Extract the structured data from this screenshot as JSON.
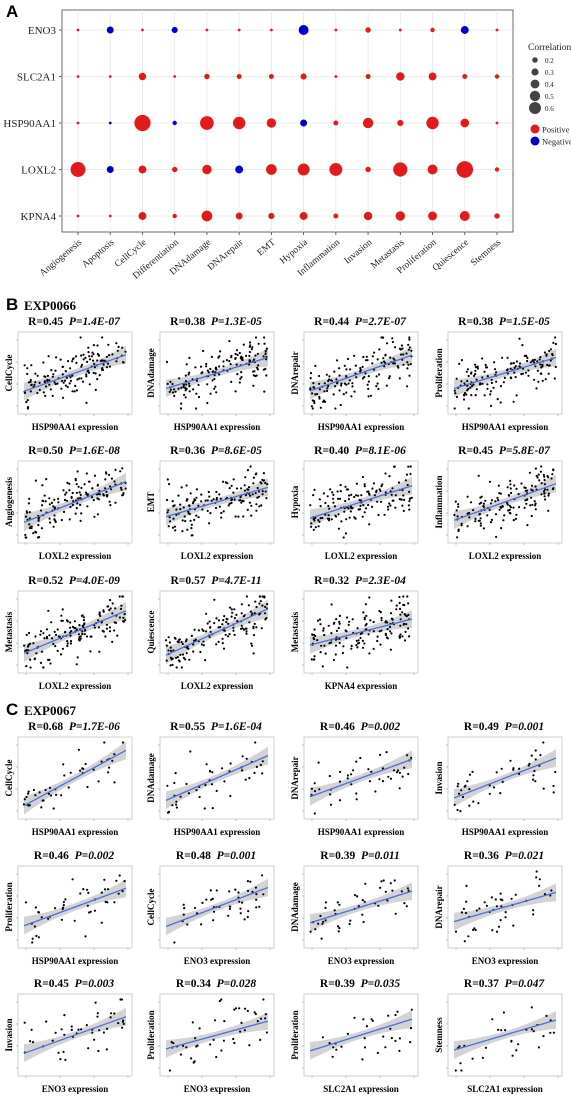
{
  "panels": {
    "a_label": "A",
    "b_label": "B",
    "c_label": "C",
    "b_dataset": "EXP0066",
    "c_dataset": "EXP0067"
  },
  "chart_data": [
    {
      "type": "scatter",
      "subtype": "dot-matrix",
      "panel": "A",
      "genes": [
        "ENO3",
        "SLC2A1",
        "HSP90AA1",
        "LOXL2",
        "KPNA4"
      ],
      "states": [
        "Angiogenesis",
        "Apoptosis",
        "CellCycle",
        "Differentiation",
        "DNAdamage",
        "DNArepair",
        "EMT",
        "Hypoxia",
        "Inflammation",
        "Invasion",
        "Metastasis",
        "Proliferation",
        "Quiescence",
        "Stemness"
      ],
      "cells": [
        {
          "gene": "ENO3",
          "values": [
            0.05,
            -0.18,
            0.06,
            -0.15,
            0.05,
            0.06,
            0.05,
            -0.3,
            0.05,
            0.12,
            0.05,
            0.08,
            -0.22,
            0.05
          ]
        },
        {
          "gene": "SLC2A1",
          "values": [
            0.05,
            0.05,
            0.2,
            0.06,
            0.12,
            0.1,
            0.1,
            0.15,
            0.06,
            0.1,
            0.24,
            0.22,
            0.1,
            0.08
          ]
        },
        {
          "gene": "HSP90AA1",
          "values": [
            0.05,
            -0.05,
            0.55,
            -0.08,
            0.45,
            0.4,
            0.28,
            -0.18,
            0.1,
            0.32,
            0.15,
            0.4,
            0.25,
            0.05
          ]
        },
        {
          "gene": "LOXL2",
          "values": [
            0.5,
            -0.18,
            0.22,
            0.12,
            0.28,
            -0.22,
            0.33,
            0.38,
            0.42,
            0.12,
            0.47,
            0.3,
            0.57,
            0.08
          ]
        },
        {
          "gene": "KPNA4",
          "values": [
            0.05,
            0.06,
            0.22,
            0.08,
            0.33,
            0.18,
            0.15,
            0.22,
            0.1,
            0.24,
            0.28,
            0.26,
            0.3,
            0.12
          ]
        }
      ],
      "size_legend": {
        "title": "Correlation",
        "labels": [
          "0.2",
          "0.3",
          "0.4",
          "0.5",
          "0.6"
        ]
      },
      "color_legend": [
        {
          "label": "Positive",
          "color": "#e31a1c"
        },
        {
          "label": "Negative",
          "color": "#0000cd"
        }
      ]
    },
    {
      "type": "scatter",
      "panel": "B",
      "dataset": "EXP0066",
      "plots": [
        {
          "r": "R=0.45",
          "p": "P=1.4E-07",
          "xlabel": "HSP90AA1 expression",
          "ylabel": "CellCycle",
          "n": 150,
          "corr": 0.45,
          "seed": 11
        },
        {
          "r": "R=0.38",
          "p": "P=1.3E-05",
          "xlabel": "HSP90AA1 expression",
          "ylabel": "DNAdamage",
          "n": 150,
          "corr": 0.38,
          "seed": 12
        },
        {
          "r": "R=0.44",
          "p": "P=2.7E-07",
          "xlabel": "HSP90AA1 expression",
          "ylabel": "DNArepair",
          "n": 150,
          "corr": 0.44,
          "seed": 13
        },
        {
          "r": "R=0.38",
          "p": "P=1.5E-05",
          "xlabel": "HSP90AA1 expression",
          "ylabel": "Proliferation",
          "n": 150,
          "corr": 0.38,
          "seed": 14
        },
        {
          "r": "R=0.50",
          "p": "P=1.6E-08",
          "xlabel": "LOXL2 expression",
          "ylabel": "Angiogenesis",
          "n": 150,
          "corr": 0.5,
          "seed": 15
        },
        {
          "r": "R=0.36",
          "p": "P=8.6E-05",
          "xlabel": "LOXL2 expression",
          "ylabel": "EMT",
          "n": 150,
          "corr": 0.36,
          "seed": 16
        },
        {
          "r": "R=0.40",
          "p": "P=8.1E-06",
          "xlabel": "LOXL2 expression",
          "ylabel": "Hypoxia",
          "n": 150,
          "corr": 0.4,
          "seed": 17
        },
        {
          "r": "R=0.45",
          "p": "P=5.8E-07",
          "xlabel": "LOXL2 expression",
          "ylabel": "Inflammation",
          "n": 150,
          "corr": 0.45,
          "seed": 18
        },
        {
          "r": "R=0.52",
          "p": "P=4.0E-09",
          "xlabel": "LOXL2 expression",
          "ylabel": "Metastasis",
          "n": 150,
          "corr": 0.52,
          "seed": 19
        },
        {
          "r": "R=0.57",
          "p": "P=4.7E-11",
          "xlabel": "LOXL2 expression",
          "ylabel": "Quiescence",
          "n": 150,
          "corr": 0.57,
          "seed": 20
        },
        {
          "r": "R=0.32",
          "p": "P=2.3E-04",
          "xlabel": "KPNA4 expression",
          "ylabel": "Metastasis",
          "n": 150,
          "corr": 0.32,
          "seed": 21
        }
      ]
    },
    {
      "type": "scatter",
      "panel": "C",
      "dataset": "EXP0067",
      "plots": [
        {
          "r": "R=0.68",
          "p": "P=1.7E-06",
          "xlabel": "HSP90AA1 expression",
          "ylabel": "CellCycle",
          "n": 45,
          "corr": 0.68,
          "seed": 31
        },
        {
          "r": "R=0.55",
          "p": "P=1.6E-04",
          "xlabel": "HSP90AA1 expression",
          "ylabel": "DNAdamage",
          "n": 45,
          "corr": 0.55,
          "seed": 32
        },
        {
          "r": "R=0.46",
          "p": "P=0.002",
          "xlabel": "HSP90AA1 expression",
          "ylabel": "DNArepair",
          "n": 45,
          "corr": 0.46,
          "seed": 33
        },
        {
          "r": "R=0.49",
          "p": "P=0.001",
          "xlabel": "HSP90AA1 expression",
          "ylabel": "Invasion",
          "n": 45,
          "corr": 0.49,
          "seed": 34
        },
        {
          "r": "R=0.46",
          "p": "P=0.002",
          "xlabel": "HSP90AA1 expression",
          "ylabel": "Proliferation",
          "n": 45,
          "corr": 0.46,
          "seed": 35
        },
        {
          "r": "R=0.48",
          "p": "P=0.001",
          "xlabel": "ENO3 expression",
          "ylabel": "CellCycle",
          "n": 45,
          "corr": 0.48,
          "seed": 36
        },
        {
          "r": "R=0.39",
          "p": "P=0.011",
          "xlabel": "ENO3 expression",
          "ylabel": "DNAdamage",
          "n": 45,
          "corr": 0.39,
          "seed": 37
        },
        {
          "r": "R=0.36",
          "p": "P=0.021",
          "xlabel": "ENO3 expression",
          "ylabel": "DNArepair",
          "n": 45,
          "corr": 0.36,
          "seed": 38
        },
        {
          "r": "R=0.45",
          "p": "P=0.003",
          "xlabel": "ENO3 expression",
          "ylabel": "Invasion",
          "n": 45,
          "corr": 0.45,
          "seed": 39
        },
        {
          "r": "R=0.34",
          "p": "P=0.028",
          "xlabel": "ENO3 expression",
          "ylabel": "Proliferation",
          "n": 45,
          "corr": 0.34,
          "seed": 40
        },
        {
          "r": "R=0.39",
          "p": "P=0.035",
          "xlabel": "SLC2A1 expression",
          "ylabel": "Proliferation",
          "n": 30,
          "corr": 0.39,
          "seed": 41
        },
        {
          "r": "R=0.37",
          "p": "P=0.047",
          "xlabel": "SLC2A1 expression",
          "ylabel": "Stemness",
          "n": 30,
          "corr": 0.37,
          "seed": 42
        }
      ]
    }
  ],
  "colors": {
    "positive": "#e31a1c",
    "negative": "#0000cd",
    "fit_line": "#4a6fd8",
    "ci_band": "#c8c8c8"
  }
}
